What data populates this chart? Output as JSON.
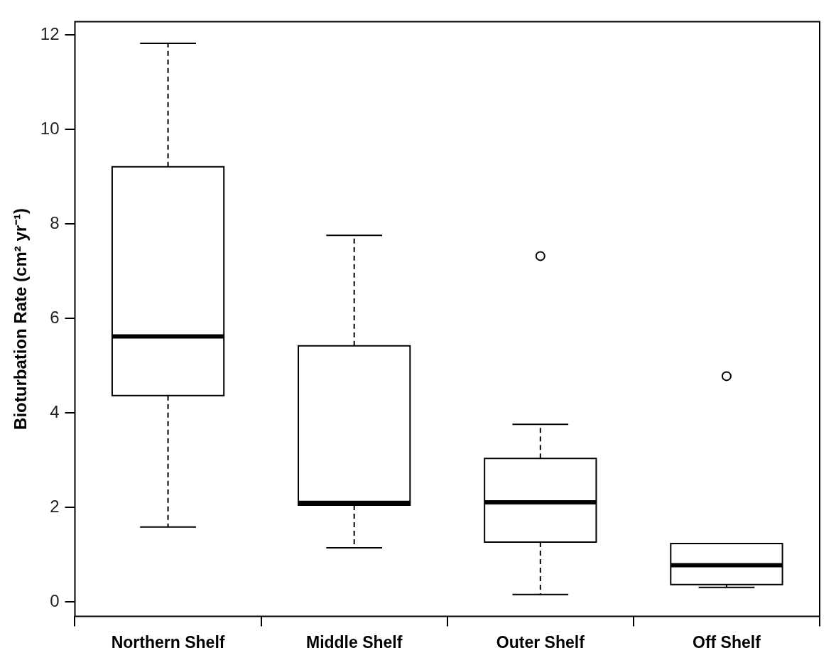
{
  "chart_data": {
    "type": "box",
    "ylabel": "Bioturbation Rate (cm² yr⁻¹)",
    "categories": [
      "Northern Shelf",
      "Middle Shelf",
      "Outer Shelf",
      "Off Shelf"
    ],
    "boxes": [
      {
        "low": 1.59,
        "q1": 4.37,
        "median": 5.62,
        "q3": 9.21,
        "high": 11.82
      },
      {
        "low": 1.15,
        "q1": 2.05,
        "median": 2.1,
        "q3": 5.42,
        "high": 7.76
      },
      {
        "low": 0.16,
        "q1": 1.27,
        "median": 2.11,
        "q3": 3.04,
        "high": 3.76,
        "outliers": [
          7.32
        ]
      },
      {
        "low": 0.31,
        "q1": 0.37,
        "median": 0.78,
        "q3": 1.24,
        "high": 0.31,
        "outliers": [
          4.78
        ]
      }
    ],
    "ylim": [
      -0.3,
      12.28
    ],
    "yticks": [
      0,
      2,
      4,
      6,
      8,
      10,
      12
    ],
    "marker": "circle",
    "line_style": "dashed"
  }
}
